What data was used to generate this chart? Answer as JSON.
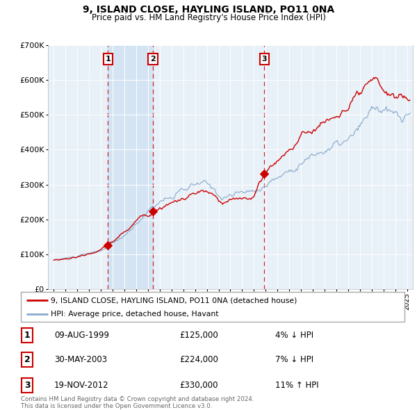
{
  "title": "9, ISLAND CLOSE, HAYLING ISLAND, PO11 0NA",
  "subtitle": "Price paid vs. HM Land Registry's House Price Index (HPI)",
  "plot_bg_color": "#e8f0f8",
  "grid_color": "#ffffff",
  "red_line_color": "#cc0000",
  "blue_line_color": "#88aacc",
  "sale_marker_color": "#cc0000",
  "dashed_line_color": "#cc0000",
  "ylim": [
    0,
    700000
  ],
  "yticks": [
    0,
    100000,
    200000,
    300000,
    400000,
    500000,
    600000,
    700000
  ],
  "ytick_labels": [
    "£0",
    "£100K",
    "£200K",
    "£300K",
    "£400K",
    "£500K",
    "£600K",
    "£700K"
  ],
  "xlim_start": 1994.5,
  "xlim_end": 2025.5,
  "sales": [
    {
      "num": 1,
      "date_str": "09-AUG-1999",
      "date_x": 1999.6,
      "price": 125000
    },
    {
      "num": 2,
      "date_str": "30-MAY-2003",
      "date_x": 2003.42,
      "price": 224000
    },
    {
      "num": 3,
      "date_str": "19-NOV-2012",
      "date_x": 2012.88,
      "price": 330000
    }
  ],
  "legend_line1": "9, ISLAND CLOSE, HAYLING ISLAND, PO11 0NA (detached house)",
  "legend_line2": "HPI: Average price, detached house, Havant",
  "footer_line1": "Contains HM Land Registry data © Crown copyright and database right 2024.",
  "footer_line2": "This data is licensed under the Open Government Licence v3.0.",
  "table_rows": [
    {
      "num": 1,
      "date": "09-AUG-1999",
      "price": "£125,000",
      "pct_hpi": "4% ↓ HPI"
    },
    {
      "num": 2,
      "date": "30-MAY-2003",
      "price": "£224,000",
      "pct_hpi": "7% ↓ HPI"
    },
    {
      "num": 3,
      "date": "19-NOV-2012",
      "price": "£330,000",
      "pct_hpi": "11% ↑ HPI"
    }
  ]
}
